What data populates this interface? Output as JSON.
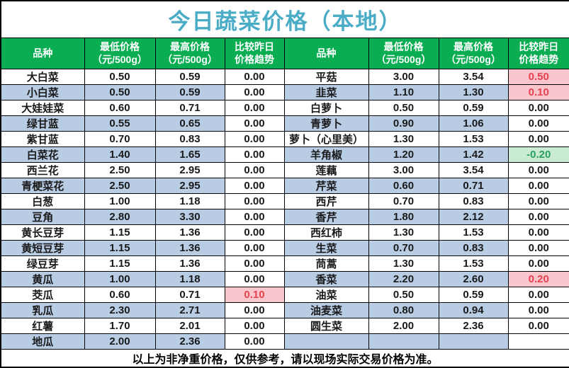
{
  "title": "今日蔬菜价格（本地）",
  "header": {
    "variety": "品种",
    "min_price_line1": "最低价格",
    "min_price_line2": "（元/500g）",
    "max_price_line1": "最高价格",
    "max_price_line2": "（元/500g）",
    "trend_line1": "比较昨日",
    "trend_line2": "价格趋势"
  },
  "footer": "以上为非净重价格，仅供参考，请以现场实际交易价格为准。",
  "colors": {
    "title_text": "#4bacc6",
    "header_bg": "#0aad52",
    "header_text": "#ffffff",
    "stripe_bg": "#b8cce4",
    "up_bg": "#f8c6cc",
    "up_text": "#e8414f",
    "down_bg": "#c9ead3",
    "down_text": "#2ba05c",
    "border": "#000000"
  },
  "left_rows": [
    {
      "name": "大白菜",
      "min": "0.50",
      "max": "0.59",
      "trend": "0.00"
    },
    {
      "name": "小白菜",
      "min": "0.50",
      "max": "0.59",
      "trend": "0.00"
    },
    {
      "name": "大娃娃菜",
      "min": "0.60",
      "max": "0.71",
      "trend": "0.00"
    },
    {
      "name": "绿甘蓝",
      "min": "0.55",
      "max": "0.65",
      "trend": "0.00"
    },
    {
      "name": "紫甘蓝",
      "min": "0.70",
      "max": "0.83",
      "trend": "0.00"
    },
    {
      "name": "白菜花",
      "min": "1.40",
      "max": "1.65",
      "trend": "0.00"
    },
    {
      "name": "西兰花",
      "min": "2.50",
      "max": "2.95",
      "trend": "0.00"
    },
    {
      "name": "青梗菜花",
      "min": "2.50",
      "max": "2.95",
      "trend": "0.00"
    },
    {
      "name": "白葱",
      "min": "1.00",
      "max": "1.18",
      "trend": "0.00"
    },
    {
      "name": "豆角",
      "min": "2.80",
      "max": "3.30",
      "trend": "0.00"
    },
    {
      "name": "黄长豆芽",
      "min": "1.15",
      "max": "1.36",
      "trend": "0.00"
    },
    {
      "name": "黄短豆芽",
      "min": "1.15",
      "max": "1.36",
      "trend": "0.00"
    },
    {
      "name": "绿豆芽",
      "min": "1.15",
      "max": "1.36",
      "trend": "0.00"
    },
    {
      "name": "黄瓜",
      "min": "1.00",
      "max": "1.18",
      "trend": "0.00"
    },
    {
      "name": "茭瓜",
      "min": "0.60",
      "max": "0.71",
      "trend": "0.10"
    },
    {
      "name": "乳瓜",
      "min": "2.30",
      "max": "2.71",
      "trend": "0.00"
    },
    {
      "name": "红薯",
      "min": "1.70",
      "max": "2.01",
      "trend": "0.00"
    },
    {
      "name": "地瓜",
      "min": "2.00",
      "max": "2.36",
      "trend": "0.00"
    }
  ],
  "right_rows": [
    {
      "name": "平菇",
      "min": "3.00",
      "max": "3.54",
      "trend": "0.50"
    },
    {
      "name": "韭菜",
      "min": "1.10",
      "max": "1.30",
      "trend": "0.10"
    },
    {
      "name": "白萝卜",
      "min": "0.50",
      "max": "0.59",
      "trend": "0.00"
    },
    {
      "name": "青萝卜",
      "min": "0.90",
      "max": "1.06",
      "trend": "0.00"
    },
    {
      "name": "萝卜（心里美）",
      "min": "1.30",
      "max": "1.53",
      "trend": "0.00"
    },
    {
      "name": "羊角椒",
      "min": "1.20",
      "max": "1.42",
      "trend": "-0.20"
    },
    {
      "name": "莲藕",
      "min": "3.00",
      "max": "3.54",
      "trend": "0.00"
    },
    {
      "name": "芹菜",
      "min": "0.60",
      "max": "0.71",
      "trend": "0.00"
    },
    {
      "name": "西芹",
      "min": "0.70",
      "max": "0.83",
      "trend": "0.00"
    },
    {
      "name": "香芹",
      "min": "1.80",
      "max": "2.12",
      "trend": "0.00"
    },
    {
      "name": "西红柿",
      "min": "1.30",
      "max": "1.53",
      "trend": "0.00"
    },
    {
      "name": "生菜",
      "min": "0.70",
      "max": "0.83",
      "trend": "0.00"
    },
    {
      "name": "茼蒿",
      "min": "1.30",
      "max": "1.53",
      "trend": "0.00"
    },
    {
      "name": "香菜",
      "min": "2.20",
      "max": "2.60",
      "trend": "0.20"
    },
    {
      "name": "油菜",
      "min": "0.50",
      "max": "0.59",
      "trend": "0.00"
    },
    {
      "name": "油麦菜",
      "min": "0.80",
      "max": "0.94",
      "trend": "0.00"
    },
    {
      "name": "圆生菜",
      "min": "2.00",
      "max": "2.36",
      "trend": "0.00"
    },
    {
      "name": "",
      "min": "",
      "max": "",
      "trend": ""
    }
  ]
}
